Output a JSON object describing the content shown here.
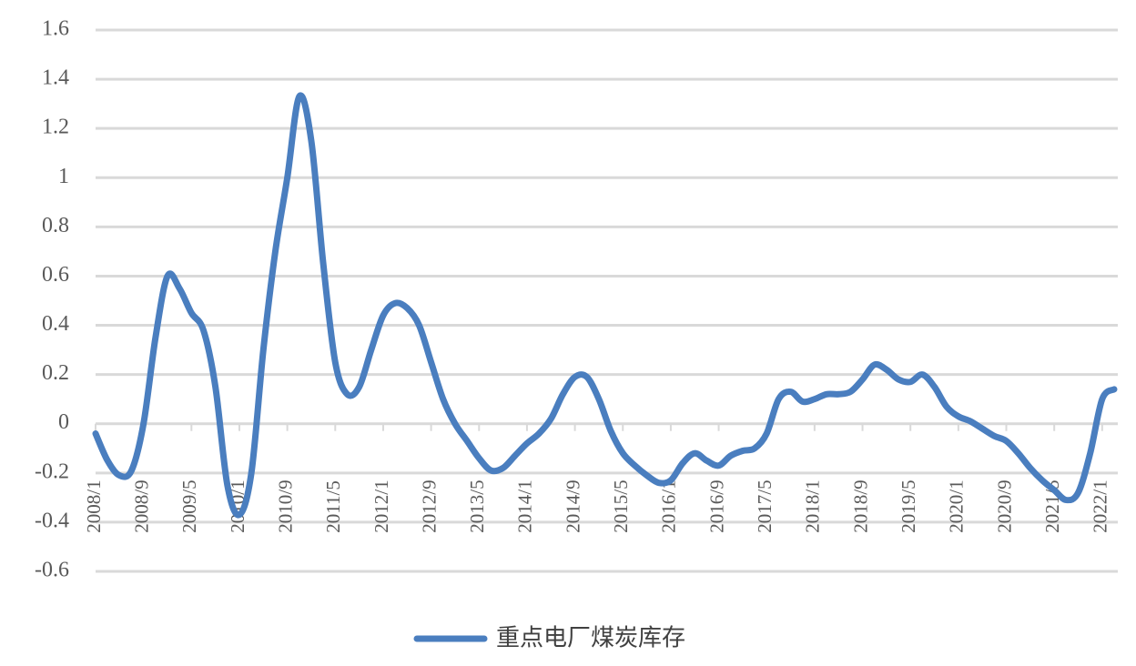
{
  "chart_data": {
    "type": "line",
    "categories": [
      "2008/1",
      null,
      null,
      null,
      "2008/9",
      null,
      null,
      null,
      "2009/5",
      null,
      null,
      null,
      "2010/1",
      null,
      null,
      null,
      "2010/9",
      null,
      null,
      null,
      "2011/5",
      null,
      null,
      null,
      "2012/1",
      null,
      null,
      null,
      "2012/9",
      null,
      null,
      null,
      "2013/5",
      null,
      null,
      null,
      "2014/1",
      null,
      null,
      null,
      "2014/9",
      null,
      null,
      null,
      "2015/5",
      null,
      null,
      null,
      "2016/1",
      null,
      null,
      null,
      "2016/9",
      null,
      null,
      null,
      "2017/5",
      null,
      null,
      null,
      "2018/1",
      null,
      null,
      null,
      "2018/9",
      null,
      null,
      null,
      "2019/5",
      null,
      null,
      null,
      "2020/1",
      null,
      null,
      null,
      "2020/9",
      null,
      null,
      null,
      "2021/5",
      null,
      null,
      null,
      "2022/1",
      null
    ],
    "series": [
      {
        "name": "重点电厂煤炭库存",
        "color": "#4a7ebf",
        "values": [
          -0.04,
          -0.15,
          -0.21,
          -0.19,
          0.0,
          0.35,
          0.6,
          0.55,
          0.45,
          0.38,
          0.15,
          -0.25,
          -0.37,
          -0.2,
          0.3,
          0.7,
          1.0,
          1.33,
          1.15,
          0.65,
          0.25,
          0.12,
          0.15,
          0.3,
          0.44,
          0.49,
          0.47,
          0.4,
          0.25,
          0.1,
          0.0,
          -0.07,
          -0.14,
          -0.19,
          -0.18,
          -0.13,
          -0.08,
          -0.04,
          0.02,
          0.12,
          0.19,
          0.19,
          0.1,
          -0.03,
          -0.12,
          -0.17,
          -0.21,
          -0.24,
          -0.23,
          -0.16,
          -0.12,
          -0.15,
          -0.17,
          -0.13,
          -0.11,
          -0.1,
          -0.04,
          0.1,
          0.13,
          0.09,
          0.1,
          0.12,
          0.12,
          0.13,
          0.18,
          0.24,
          0.22,
          0.18,
          0.17,
          0.2,
          0.15,
          0.07,
          0.03,
          0.01,
          -0.02,
          -0.05,
          -0.07,
          -0.12,
          -0.18,
          -0.23,
          -0.27,
          -0.31,
          -0.28,
          -0.12,
          0.1,
          0.14
        ]
      }
    ],
    "ylim": [
      -0.6,
      1.6
    ],
    "yticks": [
      -0.6,
      -0.4,
      -0.2,
      0,
      0.2,
      0.4,
      0.6,
      0.8,
      1,
      1.2,
      1.4,
      1.6
    ],
    "grid": true,
    "legend": "bottom"
  }
}
